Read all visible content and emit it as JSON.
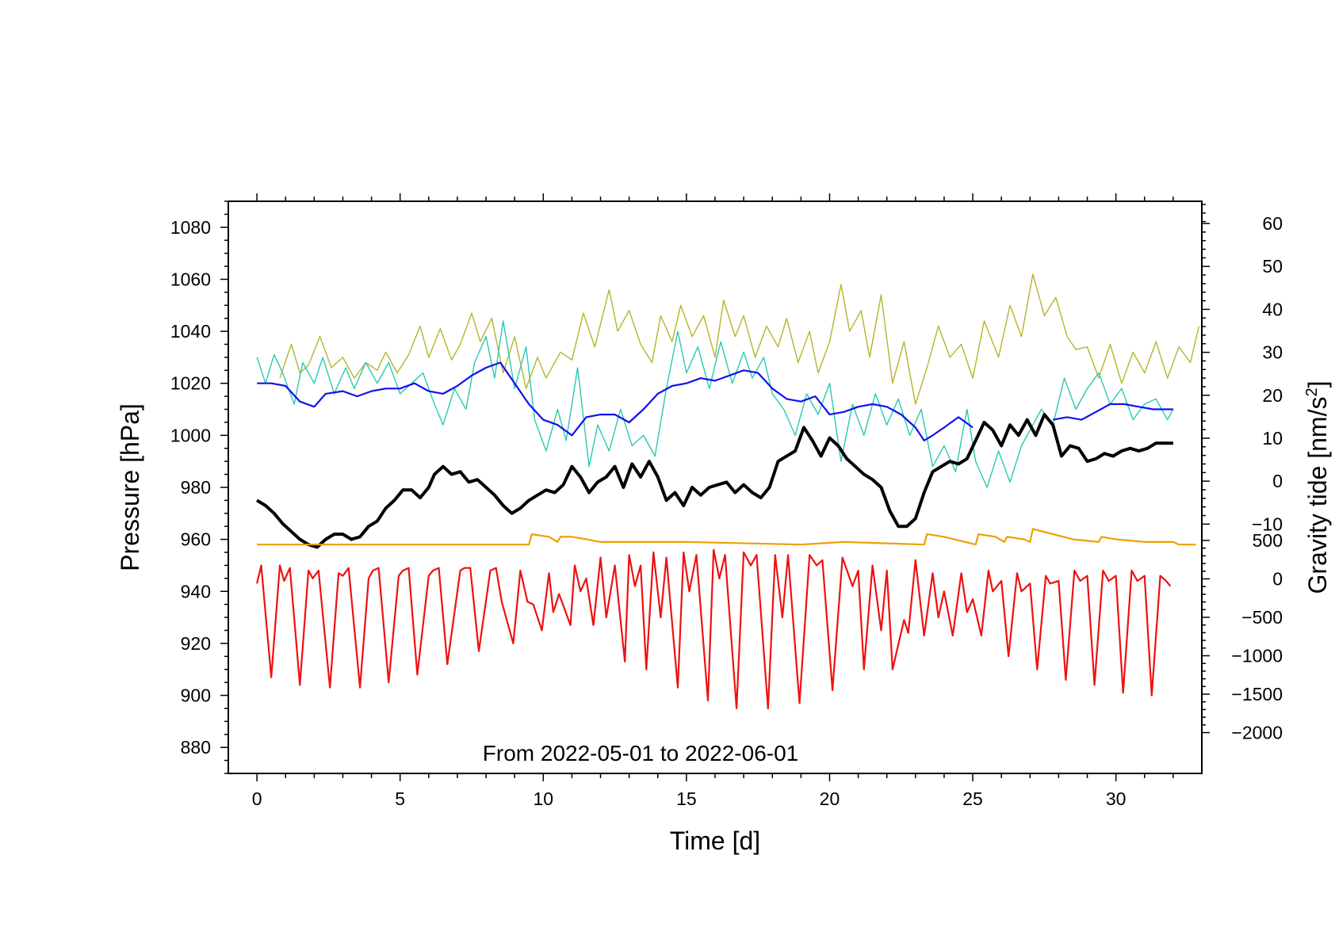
{
  "chart_data": {
    "type": "line",
    "title": "",
    "annotation": "From 2022-05-01 to 2022-06-01",
    "xlabel": "Time [d]",
    "ylabel": "Pressure [hPa]",
    "y2label_base": "Gravity tide [nm/s",
    "y2label_sup": "2",
    "y2label_end": "]",
    "xlim": [
      -1,
      33
    ],
    "ylim": [
      870,
      1090
    ],
    "x_ticks": [
      0,
      5,
      10,
      15,
      20,
      25,
      30
    ],
    "y_ticks": [
      880,
      900,
      920,
      940,
      960,
      980,
      1000,
      1020,
      1040,
      1060,
      1080
    ],
    "y2_upper_ticks": [
      "60",
      "50",
      "40",
      "30",
      "20",
      "10",
      "0",
      "−10"
    ],
    "y2_lower_ticks": [
      "500",
      "0",
      "−500",
      "−1000",
      "−1500",
      "−2000"
    ],
    "series": [
      {
        "name": "olive",
        "color": "#b5b52a",
        "x": [
          0.8,
          1.2,
          1.5,
          1.8,
          2.2,
          2.6,
          3.0,
          3.4,
          3.8,
          4.2,
          4.5,
          4.9,
          5.3,
          5.7,
          6.0,
          6.4,
          6.8,
          7.1,
          7.5,
          7.8,
          8.2,
          8.6,
          9.0,
          9.4,
          9.8,
          10.1,
          10.6,
          11.0,
          11.4,
          11.8,
          12.3,
          12.6,
          13.0,
          13.4,
          13.8,
          14.1,
          14.5,
          14.8,
          15.2,
          15.6,
          16.0,
          16.3,
          16.7,
          17.0,
          17.4,
          17.8,
          18.2,
          18.5,
          18.9,
          19.3,
          19.6,
          20.0,
          20.4,
          20.7,
          21.1,
          21.4,
          21.8,
          22.2,
          22.6,
          23.0,
          23.4,
          23.8,
          24.2,
          24.6,
          25.0,
          25.4,
          25.9,
          26.3,
          26.7,
          27.1,
          27.5,
          27.9,
          28.3,
          28.6,
          29.0,
          29.4,
          29.8,
          30.2,
          30.6,
          31.0,
          31.4,
          31.8,
          32.2,
          32.6,
          32.9
        ],
        "y": [
          1022,
          1035,
          1024,
          1027,
          1038,
          1026,
          1030,
          1022,
          1028,
          1025,
          1032,
          1024,
          1031,
          1042,
          1030,
          1041,
          1029,
          1035,
          1047,
          1036,
          1045,
          1024,
          1038,
          1018,
          1030,
          1022,
          1032,
          1029,
          1047,
          1034,
          1056,
          1040,
          1048,
          1035,
          1028,
          1046,
          1036,
          1050,
          1038,
          1046,
          1030,
          1052,
          1038,
          1046,
          1030,
          1042,
          1034,
          1045,
          1028,
          1040,
          1024,
          1036,
          1058,
          1040,
          1048,
          1030,
          1054,
          1020,
          1036,
          1012,
          1026,
          1042,
          1030,
          1035,
          1022,
          1044,
          1030,
          1050,
          1038,
          1062,
          1046,
          1053,
          1038,
          1033,
          1034,
          1022,
          1035,
          1020,
          1032,
          1024,
          1036,
          1022,
          1034,
          1028,
          1042
        ]
      },
      {
        "name": "cyan",
        "color": "#2ac9b3",
        "x": [
          0.0,
          0.3,
          0.6,
          0.9,
          1.3,
          1.6,
          2.0,
          2.3,
          2.7,
          3.1,
          3.4,
          3.8,
          4.2,
          4.6,
          5.0,
          5.4,
          5.8,
          6.2,
          6.5,
          6.9,
          7.3,
          7.6,
          8.0,
          8.3,
          8.6,
          9.0,
          9.4,
          9.7,
          10.1,
          10.5,
          10.8,
          11.2,
          11.6,
          11.9,
          12.3,
          12.7,
          13.1,
          13.5,
          13.9,
          14.3,
          14.7,
          15.0,
          15.4,
          15.8,
          16.2,
          16.6,
          17.0,
          17.3,
          17.7,
          18.0,
          18.4,
          18.8,
          19.2,
          19.6,
          20.0,
          20.4,
          20.8,
          21.2,
          21.6,
          22.0,
          22.4,
          22.8,
          23.2,
          23.6,
          24.0,
          24.4,
          24.8,
          25.1,
          25.5,
          25.9,
          26.3,
          26.7,
          27.0,
          27.4,
          27.8,
          28.2,
          28.6,
          29.0,
          29.4,
          29.8,
          30.2,
          30.6,
          31.0,
          31.4,
          31.8,
          32.0
        ],
        "y": [
          1030,
          1020,
          1031,
          1024,
          1012,
          1028,
          1020,
          1030,
          1016,
          1026,
          1018,
          1028,
          1020,
          1028,
          1016,
          1020,
          1024,
          1012,
          1004,
          1018,
          1010,
          1028,
          1038,
          1022,
          1044,
          1018,
          1034,
          1006,
          994,
          1010,
          998,
          1026,
          988,
          1004,
          994,
          1010,
          996,
          1000,
          992,
          1018,
          1040,
          1024,
          1034,
          1018,
          1036,
          1020,
          1032,
          1022,
          1030,
          1016,
          1010,
          1000,
          1016,
          1008,
          1020,
          990,
          1012,
          1000,
          1016,
          1004,
          1014,
          1000,
          1010,
          988,
          996,
          986,
          1010,
          990,
          980,
          994,
          982,
          996,
          1002,
          1010,
          1004,
          1022,
          1010,
          1018,
          1024,
          1012,
          1018,
          1006,
          1012,
          1014,
          1006,
          1010
        ]
      },
      {
        "name": "blue",
        "color": "#1111ee",
        "x": [
          0.0,
          0.5,
          1.0,
          1.5,
          2.0,
          2.4,
          3.0,
          3.5,
          4.0,
          4.5,
          5.0,
          5.5,
          6.0,
          6.5,
          7.0,
          7.5,
          8.0,
          8.5,
          9.0,
          9.5,
          10.0,
          10.5,
          11.0,
          11.5,
          12.0,
          12.5,
          13.0,
          13.5,
          14.0,
          14.5,
          15.0,
          15.5,
          16.0,
          16.5,
          17.0,
          17.5,
          18.0,
          18.5,
          19.0,
          19.5,
          20.0,
          20.5,
          21.0,
          21.5,
          22.0,
          22.5,
          23.0,
          23.3,
          23.6,
          24.0,
          24.5,
          25.0
        ],
        "y": [
          1020,
          1020,
          1019,
          1013,
          1011,
          1016,
          1017,
          1015,
          1017,
          1018,
          1018,
          1020,
          1017,
          1016,
          1019,
          1023,
          1026,
          1028,
          1020,
          1012,
          1006,
          1004,
          1000,
          1007,
          1008,
          1008,
          1005,
          1010,
          1016,
          1019,
          1020,
          1022,
          1021,
          1023,
          1025,
          1024,
          1018,
          1014,
          1013,
          1015,
          1008,
          1009,
          1011,
          1012,
          1011,
          1008,
          1003,
          998,
          1000,
          1003,
          1007,
          1003
        ]
      },
      {
        "name": "blue (continued)",
        "color": "#1111ee",
        "x": [
          27.8,
          28.3,
          28.8,
          29.3,
          29.8,
          30.3,
          30.8,
          31.3,
          31.8,
          32.0
        ],
        "y": [
          1006,
          1007,
          1006,
          1009,
          1012,
          1012,
          1011,
          1010,
          1010,
          1010
        ]
      },
      {
        "name": "black",
        "color": "#000000",
        "x": [
          0.0,
          0.3,
          0.6,
          0.9,
          1.2,
          1.5,
          1.8,
          2.1,
          2.4,
          2.7,
          3.0,
          3.3,
          3.6,
          3.9,
          4.2,
          4.5,
          4.8,
          5.1,
          5.4,
          5.7,
          6.0,
          6.2,
          6.5,
          6.8,
          7.1,
          7.4,
          7.7,
          8.0,
          8.3,
          8.6,
          8.9,
          9.2,
          9.5,
          9.8,
          10.1,
          10.4,
          10.7,
          11.0,
          11.3,
          11.6,
          11.9,
          12.2,
          12.5,
          12.8,
          13.1,
          13.4,
          13.7,
          14.0,
          14.3,
          14.6,
          14.9,
          15.2,
          15.5,
          15.8,
          16.1,
          16.4,
          16.7,
          17.0,
          17.3,
          17.6,
          17.9,
          18.2,
          18.5,
          18.8,
          19.1,
          19.4,
          19.7,
          20.0,
          20.3,
          20.6,
          20.9,
          21.2,
          21.5,
          21.8,
          22.1,
          22.4,
          22.7,
          23.0,
          23.3,
          23.6,
          23.9,
          24.2,
          24.5,
          24.8,
          25.1,
          25.4,
          25.7,
          26.0,
          26.3,
          26.6,
          26.9,
          27.2,
          27.5,
          27.8,
          28.1,
          28.4,
          28.7,
          29.0,
          29.3,
          29.6,
          29.9,
          30.2,
          30.5,
          30.8,
          31.1,
          31.4,
          31.7,
          32.0
        ],
        "y": [
          975,
          973,
          970,
          966,
          963,
          960,
          958,
          957,
          960,
          962,
          962,
          960,
          961,
          965,
          967,
          972,
          975,
          979,
          979,
          976,
          980,
          985,
          988,
          985,
          986,
          982,
          983,
          980,
          977,
          973,
          970,
          972,
          975,
          977,
          979,
          978,
          981,
          988,
          984,
          978,
          982,
          984,
          988,
          980,
          989,
          984,
          990,
          984,
          975,
          978,
          973,
          980,
          977,
          980,
          981,
          982,
          978,
          981,
          978,
          976,
          980,
          990,
          992,
          994,
          1003,
          998,
          992,
          999,
          996,
          991,
          988,
          985,
          983,
          980,
          971,
          965,
          965,
          968,
          978,
          986,
          988,
          990,
          989,
          991,
          998,
          1005,
          1002,
          996,
          1004,
          1000,
          1006,
          1000,
          1008,
          1004,
          992,
          996,
          995,
          990,
          991,
          993,
          992,
          994,
          995,
          994,
          995,
          997,
          997,
          997
        ]
      },
      {
        "name": "orange",
        "color": "#eea000",
        "x": [
          0.0,
          2.0,
          3.5,
          9.5,
          9.6,
          10.2,
          10.5,
          10.6,
          11.0,
          11.5,
          12.0,
          15.0,
          19.0,
          20.5,
          23.3,
          23.4,
          24.0,
          25.1,
          25.2,
          25.8,
          26.1,
          26.2,
          26.8,
          27.0,
          27.1,
          27.8,
          28.5,
          29.4,
          29.5,
          30.0,
          31.0,
          32.0,
          32.2,
          32.8
        ],
        "y": [
          958,
          958,
          958,
          958,
          962,
          961,
          959,
          961,
          961,
          960,
          959,
          959,
          958,
          959,
          958,
          962,
          961,
          958,
          962,
          961,
          959,
          961,
          960,
          959,
          964,
          962,
          960,
          959,
          961,
          960,
          959,
          959,
          958,
          958
        ]
      },
      {
        "name": "red (gravity tide)",
        "color": "#ee1111",
        "x": [
          0.0,
          0.15,
          0.5,
          0.8,
          0.95,
          1.15,
          1.5,
          1.8,
          1.95,
          2.15,
          2.55,
          2.85,
          3.0,
          3.2,
          3.6,
          3.9,
          4.05,
          4.25,
          4.6,
          4.95,
          5.1,
          5.3,
          5.6,
          6.0,
          6.15,
          6.35,
          6.65,
          7.1,
          7.25,
          7.45,
          7.75,
          8.15,
          8.35,
          8.55,
          8.95,
          9.2,
          9.45,
          9.65,
          9.95,
          10.2,
          10.35,
          10.55,
          10.95,
          11.1,
          11.3,
          11.5,
          11.75,
          12.0,
          12.2,
          12.5,
          12.85,
          13.0,
          13.2,
          13.4,
          13.6,
          13.85,
          14.1,
          14.3,
          14.7,
          14.9,
          15.1,
          15.35,
          15.75,
          15.95,
          16.15,
          16.35,
          16.75,
          17.0,
          17.25,
          17.45,
          17.85,
          18.1,
          18.35,
          18.55,
          18.95,
          19.3,
          19.55,
          19.75,
          20.1,
          20.45,
          20.8,
          21.0,
          21.2,
          21.5,
          21.8,
          22.0,
          22.2,
          22.6,
          22.75,
          23.0,
          23.3,
          23.6,
          23.8,
          24.0,
          24.3,
          24.6,
          24.8,
          25.0,
          25.3,
          25.55,
          25.7,
          26.0,
          26.25,
          26.55,
          26.7,
          27.0,
          27.25,
          27.55,
          27.7,
          28.0,
          28.25,
          28.55,
          28.75,
          29.0,
          29.25,
          29.55,
          29.75,
          30.0,
          30.25,
          30.55,
          30.75,
          31.0,
          31.25,
          31.55,
          31.75,
          31.9
        ],
        "y": [
          943,
          950,
          907,
          950,
          944,
          949,
          904,
          948,
          945,
          948,
          903,
          947,
          946,
          949,
          903,
          945,
          948,
          949,
          905,
          946,
          948,
          949,
          908,
          946,
          948,
          949,
          912,
          948,
          949,
          949,
          917,
          948,
          949,
          936,
          920,
          948,
          936,
          935,
          925,
          947,
          932,
          939,
          927,
          950,
          940,
          945,
          927,
          953,
          930,
          950,
          913,
          954,
          942,
          950,
          910,
          955,
          930,
          953,
          903,
          955,
          940,
          954,
          898,
          956,
          945,
          954,
          895,
          955,
          950,
          954,
          895,
          954,
          930,
          954,
          897,
          954,
          950,
          952,
          902,
          953,
          942,
          948,
          910,
          950,
          925,
          948,
          910,
          929,
          924,
          952,
          923,
          947,
          930,
          940,
          923,
          947,
          932,
          937,
          923,
          948,
          940,
          944,
          915,
          947,
          940,
          943,
          910,
          946,
          943,
          944,
          906,
          948,
          944,
          946,
          904,
          948,
          944,
          946,
          901,
          948,
          944,
          946,
          900,
          946,
          944,
          942
        ]
      }
    ]
  }
}
